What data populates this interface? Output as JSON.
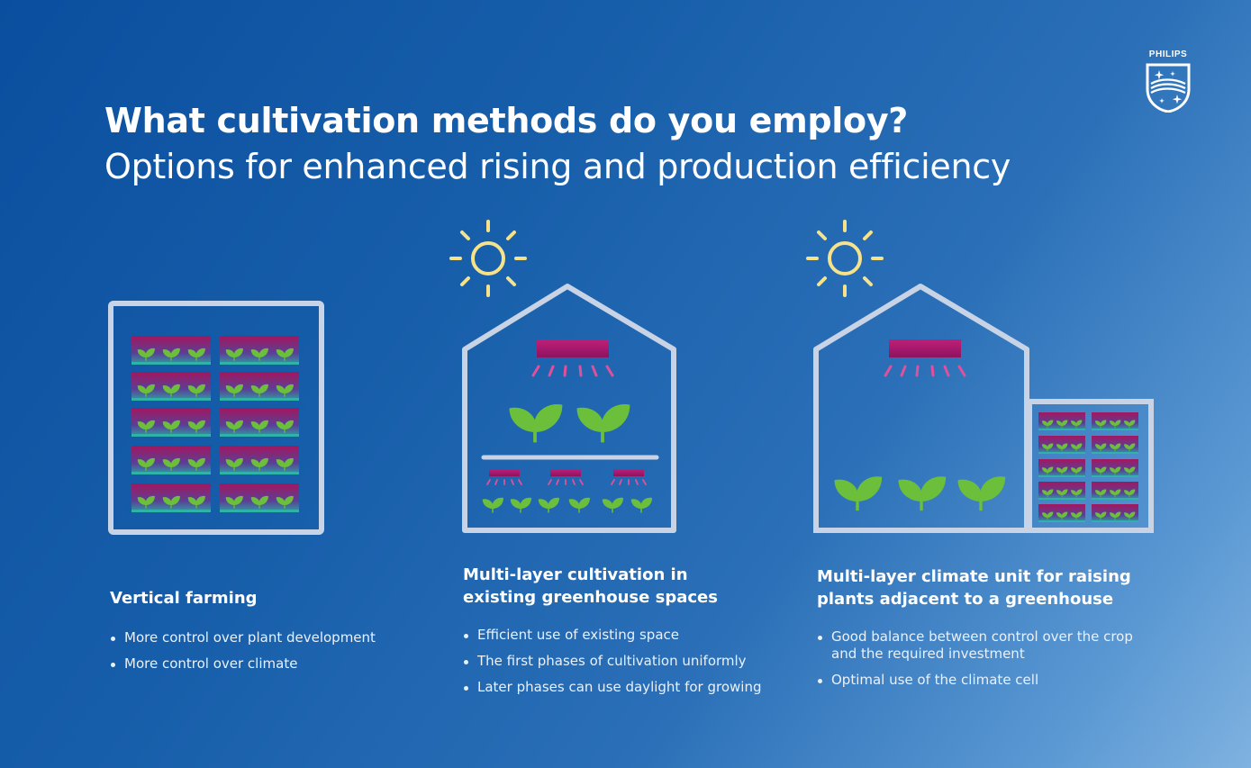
{
  "header": {
    "title": "What cultivation methods do you employ?",
    "subtitle": "Options for enhanced rising and production efficiency"
  },
  "brand": {
    "name": "PHILIPS"
  },
  "methods": [
    {
      "title": "Vertical farming",
      "bullets": [
        "More control over plant development",
        "More control over climate"
      ]
    },
    {
      "title_lines": [
        "Multi-layer cultivation in",
        "existing greenhouse spaces"
      ],
      "bullets": [
        "Efficient use of existing space",
        "The first phases of cultivation uniformly",
        "Later phases can use daylight for growing"
      ]
    },
    {
      "title_lines": [
        "Multi-layer climate unit for raising",
        "plants adjacent to a greenhouse"
      ],
      "bullets": [
        "Good balance between control over the crop and the required investment",
        "Optimal use of the climate cell"
      ]
    }
  ],
  "icons": [
    "sun-icon",
    "grow-light-icon",
    "plant-leaf-icon",
    "greenhouse-icon",
    "vertical-farm-rack-icon",
    "philips-shield-icon"
  ],
  "colors": {
    "outline": "#c9d3e6",
    "sun": "#f6e28a",
    "lamp": "#b01a6d",
    "lamp_light": "#e2509a",
    "leaf": "#6cbf3a",
    "tray_top": "#a3175f",
    "tray_bottom": "#2f9ea6"
  }
}
